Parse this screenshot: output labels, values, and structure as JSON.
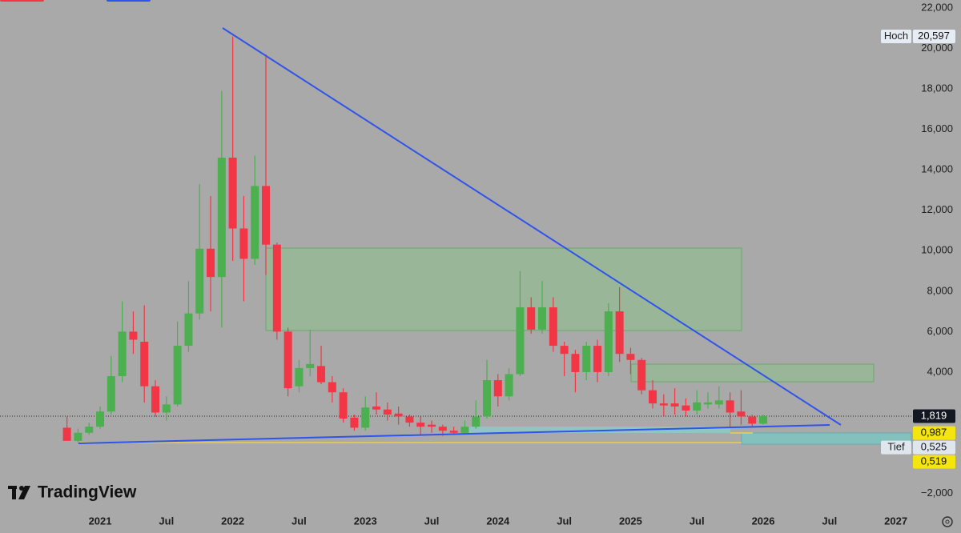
{
  "chart_data": {
    "type": "candlestick",
    "watermark": "TradingView",
    "up_color": "#4caf50",
    "down_color": "#f23645",
    "x": [
      2020.75,
      2020.8333,
      2020.9167,
      2021,
      2021.0833,
      2021.1667,
      2021.25,
      2021.3333,
      2021.4167,
      2021.5,
      2021.5833,
      2021.6667,
      2021.75,
      2021.8333,
      2021.9167,
      2022,
      2022.0833,
      2022.1667,
      2022.25,
      2022.3333,
      2022.4167,
      2022.5,
      2022.5833,
      2022.6667,
      2022.75,
      2022.8333,
      2022.9167,
      2023,
      2023.0833,
      2023.1667,
      2023.25,
      2023.3333,
      2023.4167,
      2023.5,
      2023.5833,
      2023.6667,
      2023.75,
      2023.8333,
      2023.9167,
      2024,
      2024.0833,
      2024.1667,
      2024.25,
      2024.3333,
      2024.4167,
      2024.5,
      2024.5833,
      2024.6667,
      2024.75,
      2024.8333,
      2024.9167,
      2025,
      2025.0833,
      2025.1667,
      2025.25,
      2025.3333,
      2025.4167,
      2025.5,
      2025.5833,
      2025.6667,
      2025.75,
      2025.8333,
      2025.9167,
      2026
    ],
    "open": [
      1.25,
      0.6,
      1.0,
      1.3,
      2.05,
      3.8,
      6.0,
      5.5,
      3.3,
      2.0,
      2.4,
      5.3,
      6.9,
      10.1,
      8.7,
      14.6,
      11.1,
      9.6,
      13.2,
      10.3,
      6.0,
      3.3,
      4.2,
      4.3,
      3.5,
      3.0,
      1.75,
      1.25,
      2.3,
      2.15,
      1.95,
      1.8,
      1.5,
      1.4,
      1.3,
      1.1,
      1.0,
      1.3,
      1.8,
      3.6,
      2.8,
      3.9,
      7.2,
      6.1,
      7.2,
      5.3,
      4.9,
      4.0,
      5.3,
      4.0,
      7.0,
      4.9,
      4.6,
      3.1,
      2.45,
      2.45,
      2.35,
      2.1,
      2.4,
      2.4,
      2.6,
      2.05,
      1.8,
      1.45
    ],
    "high": [
      1.8,
      1.2,
      1.5,
      2.3,
      4.8,
      7.5,
      7.0,
      7.3,
      3.6,
      2.8,
      6.5,
      8.5,
      13.3,
      12.7,
      17.9,
      20.597,
      12.7,
      14.7,
      19.7,
      10.4,
      6.2,
      4.6,
      6.1,
      5.3,
      3.8,
      3.2,
      1.9,
      2.8,
      3.0,
      2.5,
      2.3,
      1.9,
      1.8,
      1.6,
      1.4,
      1.3,
      1.6,
      2.6,
      4.6,
      3.9,
      4.2,
      9.0,
      7.7,
      8.5,
      7.7,
      5.5,
      5.1,
      5.5,
      5.6,
      7.4,
      8.2,
      5.2,
      4.7,
      3.6,
      2.9,
      3.2,
      2.7,
      3.1,
      3.0,
      3.3,
      3.0,
      3.1,
      1.9,
      1.9
    ],
    "low": [
      0.6,
      0.525,
      0.9,
      1.2,
      1.9,
      3.5,
      4.9,
      2.5,
      1.8,
      1.6,
      2.3,
      5.0,
      6.6,
      7.0,
      6.2,
      9.5,
      7.5,
      9.3,
      8.8,
      5.6,
      2.8,
      3.0,
      3.8,
      3.4,
      2.5,
      1.5,
      1.1,
      1.1,
      1.9,
      1.6,
      1.4,
      1.3,
      0.9,
      1.0,
      0.85,
      0.9,
      0.9,
      1.2,
      1.7,
      2.3,
      2.6,
      3.8,
      5.9,
      5.9,
      5.0,
      3.8,
      3.0,
      3.6,
      3.5,
      3.8,
      4.5,
      3.9,
      2.9,
      2.2,
      1.8,
      1.9,
      1.8,
      1.9,
      2.2,
      2.2,
      1.3,
      1.4,
      1.3,
      1.4
    ],
    "close": [
      0.6,
      1.0,
      1.3,
      2.05,
      3.8,
      6.0,
      5.6,
      3.3,
      2.0,
      2.4,
      5.3,
      6.9,
      10.1,
      8.7,
      14.6,
      11.1,
      9.6,
      13.2,
      10.3,
      6.0,
      3.2,
      4.2,
      4.4,
      3.5,
      3.0,
      1.7,
      1.25,
      2.25,
      2.15,
      1.9,
      1.8,
      1.5,
      1.3,
      1.3,
      1.1,
      1.0,
      1.3,
      1.8,
      3.6,
      2.8,
      3.9,
      7.2,
      6.1,
      7.2,
      5.3,
      4.9,
      4.0,
      5.3,
      4.0,
      7.0,
      4.9,
      4.6,
      3.1,
      2.45,
      2.35,
      2.3,
      2.1,
      2.5,
      2.5,
      2.6,
      2.0,
      1.8,
      1.45,
      1.819
    ],
    "xlim": [
      2020.245,
      2027.117
    ],
    "xticks": [
      2021,
      {
        "value": 2021.5,
        "label": "Jul"
      },
      2022,
      {
        "value": 2022.5,
        "label": "Jul"
      },
      2023,
      {
        "value": 2023.5,
        "label": "Jul"
      },
      2024,
      {
        "value": 2024.5,
        "label": "Jul"
      },
      2025,
      {
        "value": 2025.5,
        "label": "Jul"
      },
      2026,
      {
        "value": 2026.5,
        "label": "Jul"
      },
      2027
    ],
    "ylim": [
      -2.927,
      22.396
    ],
    "yticks": [
      {
        "value": -2,
        "label": "−2,000"
      },
      {
        "value": 4,
        "label": "4,000"
      },
      {
        "value": 6,
        "label": "6,000"
      },
      {
        "value": 8,
        "label": "8,000"
      },
      {
        "value": 10,
        "label": "10,000"
      },
      {
        "value": 12,
        "label": "12,000"
      },
      {
        "value": 14,
        "label": "14,000"
      },
      {
        "value": 16,
        "label": "16,000"
      },
      {
        "value": 18,
        "label": "18,000"
      },
      {
        "value": 20,
        "label": "20,000"
      },
      {
        "value": 22,
        "label": "22,000"
      }
    ],
    "price_labels": [
      {
        "name": "Hoch",
        "value": 20.597,
        "label": "20,597",
        "color": "#e6ecf3"
      },
      {
        "value": 1.819,
        "label": "1,819",
        "color": "#131722"
      },
      {
        "value": 0.987,
        "label": "0,987",
        "color": "#f5e50f"
      },
      {
        "name": "Tief",
        "value": 0.525,
        "label": "0,525",
        "color": "#dfe6ee"
      },
      {
        "value": 0.519,
        "label": "0,519",
        "color": "#f5e50f"
      }
    ]
  }
}
